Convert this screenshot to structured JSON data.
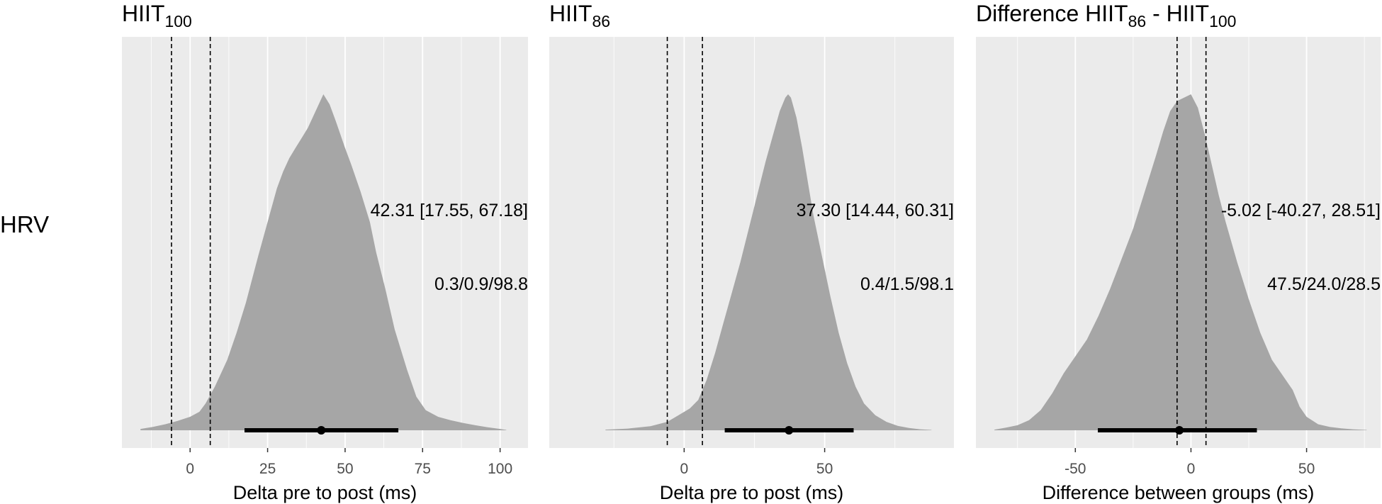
{
  "row_label": "HRV",
  "colors": {
    "panel_bg": "#EBEBEB",
    "grid": "#FFFFFF",
    "density_fill": "#A6A6A6",
    "interval": "#000000",
    "tick_text": "#4D4D4D"
  },
  "chart_data": [
    {
      "type": "area",
      "title": "HIIT",
      "title_sub": "100",
      "xlabel": "Delta pre to post (ms)",
      "xlim": [
        -22,
        109
      ],
      "xticks": [
        0,
        25,
        50,
        75,
        100
      ],
      "minor_xticks": [
        -12.5,
        12.5,
        37.5,
        62.5,
        87.5
      ],
      "rope": [
        -6,
        6.5
      ],
      "density": {
        "x": [
          -16,
          -12,
          -8,
          -4,
          0,
          3,
          5,
          8,
          10,
          12,
          15,
          18,
          20,
          22,
          25,
          28,
          30,
          32,
          34,
          36,
          38,
          40,
          42,
          43,
          45,
          47,
          50,
          52,
          55,
          58,
          60,
          63,
          66,
          70,
          73,
          76,
          80,
          84,
          88,
          92,
          96,
          100,
          102
        ],
        "y": [
          0.004,
          0.01,
          0.018,
          0.028,
          0.04,
          0.055,
          0.08,
          0.13,
          0.17,
          0.21,
          0.29,
          0.38,
          0.45,
          0.52,
          0.62,
          0.72,
          0.77,
          0.81,
          0.84,
          0.87,
          0.9,
          0.94,
          0.98,
          1.0,
          0.97,
          0.92,
          0.84,
          0.79,
          0.71,
          0.62,
          0.53,
          0.42,
          0.3,
          0.18,
          0.1,
          0.06,
          0.04,
          0.03,
          0.022,
          0.015,
          0.009,
          0.004,
          0.001
        ]
      },
      "point_estimate": 42.31,
      "interval": [
        17.55,
        67.18
      ],
      "annotation_estimate": "42.31 [17.55, 67.18]",
      "annotation_probs": "0.3/0.9/98.8"
    },
    {
      "type": "area",
      "title": "HIIT",
      "title_sub": "86",
      "xlabel": "Delta pre to post (ms)",
      "xlim": [
        -48,
        96
      ],
      "xticks": [
        0,
        50
      ],
      "minor_xticks": [
        -25,
        25,
        75
      ],
      "rope": [
        -6,
        6.5
      ],
      "density": {
        "x": [
          -28,
          -20,
          -12,
          -6,
          -2,
          2,
          5,
          8,
          11,
          14,
          17,
          20,
          23,
          26,
          29,
          32,
          34,
          36,
          37,
          38,
          40,
          42,
          44,
          46,
          49,
          52,
          55,
          58,
          61,
          64,
          68,
          72,
          76,
          80,
          84,
          88
        ],
        "y": [
          0.002,
          0.005,
          0.012,
          0.025,
          0.045,
          0.065,
          0.09,
          0.15,
          0.23,
          0.32,
          0.41,
          0.5,
          0.6,
          0.7,
          0.8,
          0.89,
          0.95,
          0.99,
          1.0,
          0.99,
          0.93,
          0.84,
          0.74,
          0.64,
          0.52,
          0.4,
          0.29,
          0.2,
          0.13,
          0.08,
          0.045,
          0.025,
          0.013,
          0.007,
          0.003,
          0.001
        ]
      },
      "point_estimate": 37.3,
      "interval": [
        14.44,
        60.31
      ],
      "annotation_estimate": "37.30 [14.44, 60.31]",
      "annotation_probs": "0.4/1.5/98.1"
    },
    {
      "type": "area",
      "title": "Difference HIIT",
      "title_sub": "86",
      "title_mid": " - HIIT",
      "title_sub2": "100",
      "xlabel": "Difference between groups (ms)",
      "xlim": [
        -93,
        82
      ],
      "xticks": [
        -50,
        0,
        50
      ],
      "minor_xticks": [
        -75,
        -25,
        25,
        75
      ],
      "rope": [
        -6,
        6.5
      ],
      "density": {
        "x": [
          -85,
          -80,
          -75,
          -70,
          -65,
          -60,
          -55,
          -50,
          -45,
          -40,
          -35,
          -30,
          -25,
          -20,
          -15,
          -12,
          -9,
          -6,
          -3,
          0,
          3,
          6,
          9,
          12,
          15,
          20,
          25,
          30,
          35,
          40,
          44,
          47,
          50,
          55,
          60,
          65,
          70,
          76
        ],
        "y": [
          0.002,
          0.008,
          0.015,
          0.03,
          0.06,
          0.11,
          0.17,
          0.22,
          0.27,
          0.34,
          0.42,
          0.51,
          0.6,
          0.71,
          0.82,
          0.89,
          0.95,
          0.98,
          0.99,
          1.0,
          0.96,
          0.88,
          0.79,
          0.7,
          0.62,
          0.5,
          0.39,
          0.29,
          0.21,
          0.16,
          0.12,
          0.07,
          0.04,
          0.018,
          0.01,
          0.006,
          0.003,
          0.001
        ]
      },
      "point_estimate": -5.02,
      "interval": [
        -40.27,
        28.51
      ],
      "annotation_estimate": "-5.02 [-40.27, 28.51]",
      "annotation_probs": "47.5/24.0/28.5"
    }
  ]
}
